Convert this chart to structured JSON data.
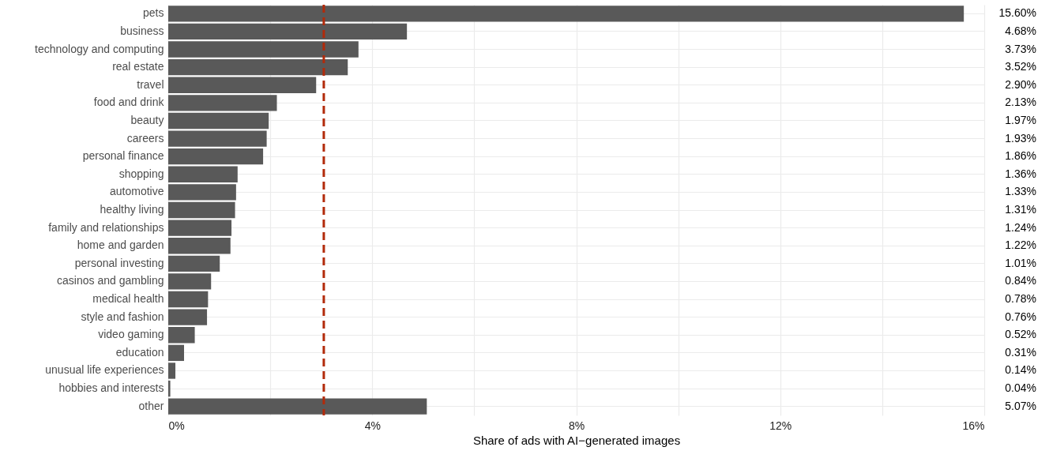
{
  "chart_data": {
    "type": "bar",
    "orientation": "horizontal",
    "xlabel": "Share of ads with AI−generated images",
    "categories": [
      "pets",
      "business",
      "technology and computing",
      "real estate",
      "travel",
      "food and drink",
      "beauty",
      "careers",
      "personal finance",
      "shopping",
      "automotive",
      "healthy living",
      "family and relationships",
      "home and garden",
      "personal investing",
      "casinos and gambling",
      "medical health",
      "style and fashion",
      "video gaming",
      "education",
      "unusual life experiences",
      "hobbies and interests",
      "other"
    ],
    "values": [
      15.6,
      4.68,
      3.73,
      3.52,
      2.9,
      2.13,
      1.97,
      1.93,
      1.86,
      1.36,
      1.33,
      1.31,
      1.24,
      1.22,
      1.01,
      0.84,
      0.78,
      0.76,
      0.52,
      0.31,
      0.14,
      0.04,
      5.07
    ],
    "value_labels": [
      "15.60%",
      "4.68%",
      "3.73%",
      "3.52%",
      "2.90%",
      "2.13%",
      "1.97%",
      "1.93%",
      "1.86%",
      "1.36%",
      "1.33%",
      "1.31%",
      "1.24%",
      "1.22%",
      "1.01%",
      "0.84%",
      "0.78%",
      "0.76%",
      "0.52%",
      "0.31%",
      "0.14%",
      "0.04%",
      "5.07%"
    ],
    "color": "#595959",
    "xlim": [
      0,
      16
    ],
    "xticks": [
      {
        "value": 0,
        "label": "0%"
      },
      {
        "value": 2,
        "label": null
      },
      {
        "value": 4,
        "label": "4%"
      },
      {
        "value": 6,
        "label": null
      },
      {
        "value": 8,
        "label": "8%"
      },
      {
        "value": 10,
        "label": null
      },
      {
        "value": 12,
        "label": "12%"
      },
      {
        "value": 14,
        "label": null
      },
      {
        "value": 16,
        "label": "16%"
      }
    ],
    "ref_lines": [
      {
        "axis": "x",
        "value": 3.05,
        "color": "#b22a0a",
        "line_style": "dashed"
      }
    ],
    "grid": true
  }
}
